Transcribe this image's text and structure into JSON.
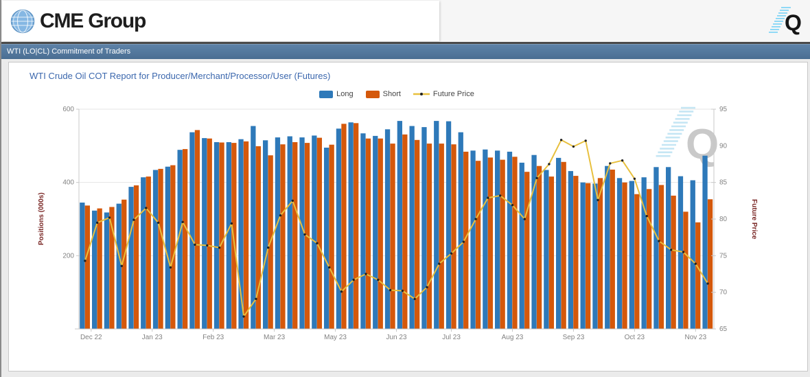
{
  "header": {
    "logo_text": "CME Group",
    "quikstrike_letter": "Q"
  },
  "module_header": {
    "title": "WTI (LO|CL) Commitment of Traders"
  },
  "chart": {
    "title": "WTI Crude Oil COT Report for Producer/Merchant/Processor/User (Futures)",
    "watermark_letter": "Q",
    "legend": [
      {
        "label": "Long",
        "glyph": "box",
        "color": "#2e79b9"
      },
      {
        "label": "Short",
        "glyph": "box",
        "color": "#d4580b"
      },
      {
        "label": "Future Price",
        "glyph": "line",
        "color": "#e8c03e",
        "marker_color": "#222222"
      }
    ]
  },
  "chart_data": {
    "type": "bar",
    "subtype": "weekly bar pairs with overlaid price line",
    "weeks": 52,
    "title": "WTI Crude Oil COT Report for Producer/Merchant/Processor/User (Futures)",
    "series": [
      {
        "name": "Long",
        "type": "bar",
        "axis": "left",
        "color": "#2e79b9",
        "values": [
          345,
          323,
          318,
          342,
          388,
          414,
          434,
          443,
          489,
          537,
          521,
          510,
          510,
          518,
          554,
          515,
          523,
          526,
          523,
          528,
          495,
          547,
          564,
          534,
          527,
          545,
          568,
          554,
          551,
          568,
          567,
          537,
          487,
          490,
          487,
          484,
          454,
          475,
          434,
          467,
          431,
          400,
          397,
          445,
          412,
          404,
          414,
          442,
          442,
          417,
          406,
          473
        ]
      },
      {
        "name": "Short",
        "type": "bar",
        "axis": "left",
        "color": "#d4580b",
        "values": [
          337,
          329,
          333,
          353,
          392,
          416,
          437,
          447,
          491,
          543,
          520,
          509,
          508,
          512,
          499,
          474,
          504,
          510,
          508,
          522,
          503,
          560,
          562,
          520,
          520,
          506,
          531,
          516,
          506,
          506,
          504,
          484,
          459,
          468,
          462,
          470,
          429,
          445,
          416,
          456,
          418,
          398,
          412,
          435,
          400,
          368,
          382,
          393,
          364,
          320,
          291,
          354
        ]
      },
      {
        "name": "Future Price",
        "type": "line",
        "axis": "right",
        "color": "#e8c03e",
        "marker_color": "#222222",
        "values": [
          74.3,
          79.5,
          80.2,
          73.6,
          79.9,
          81.5,
          79.5,
          73.4,
          79.6,
          76.5,
          76.4,
          76.1,
          79.4,
          66.7,
          69.1,
          76.1,
          80.5,
          82.5,
          77.9,
          76.7,
          73.4,
          70.1,
          71.7,
          72.5,
          71.7,
          70.3,
          70.2,
          69.1,
          70.7,
          73.9,
          75.3,
          76.9,
          80.0,
          82.9,
          83.2,
          81.9,
          80.0,
          85.6,
          87.5,
          90.8,
          89.9,
          90.7,
          82.6,
          87.6,
          88.0,
          85.5,
          80.4,
          77.0,
          75.8,
          75.5,
          73.9,
          71.2
        ]
      }
    ],
    "x_axis": {
      "tick_positions": [
        1,
        6,
        11,
        16,
        21,
        26,
        30.5,
        35.5,
        40.5,
        45.5,
        50.5
      ],
      "tick_labels": [
        "Dec 22",
        "Jan 23",
        "Feb 23",
        "Mar 23",
        "May 23",
        "Jun 23",
        "Jul 23",
        "Aug 23",
        "Sep 23",
        "Oct 23",
        "Nov 23"
      ]
    },
    "left_axis": {
      "label": "Positions (000s)",
      "range": [
        0,
        600
      ],
      "tick_values": [
        200,
        400,
        600
      ],
      "unlabeled_ticks": [
        0
      ]
    },
    "right_axis": {
      "label": "Future Price",
      "range": [
        65,
        95
      ],
      "tick_values": [
        65,
        70,
        75,
        80,
        85,
        90,
        95
      ]
    },
    "grid": {
      "horizontal_lines": [
        200,
        400,
        600
      ],
      "color": "#e4e4e4"
    },
    "legend_position": "top-center"
  },
  "colors": {
    "long_bar": "#2e79b9",
    "short_bar": "#d4580b",
    "price_line": "#e8c03e",
    "chart_title": "#3b67ad",
    "axis_title": "#7b2927",
    "tick_text": "#828282",
    "module_header_bg": "#4a6e92",
    "watermark": "#c9c9c9",
    "watermark_hatch": "#c5e6f4"
  }
}
